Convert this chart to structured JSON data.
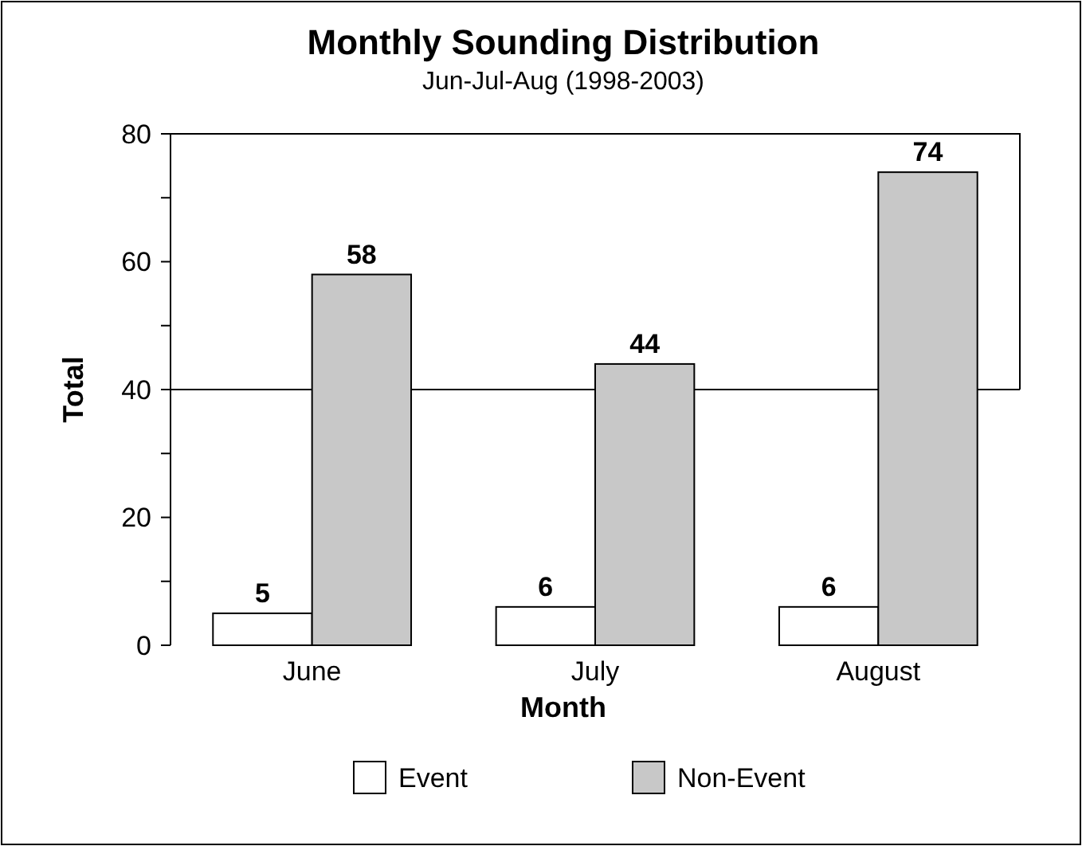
{
  "chart_data": {
    "type": "bar",
    "title": "Monthly Sounding Distribution",
    "subtitle": "Jun-Jul-Aug (1998-2003)",
    "xlabel": "Month",
    "ylabel": "Total",
    "categories": [
      "June",
      "July",
      "August"
    ],
    "series": [
      {
        "name": "Event",
        "color": "#ffffff",
        "values": [
          5,
          6,
          6
        ]
      },
      {
        "name": "Non-Event",
        "color": "#c8c8c8",
        "values": [
          58,
          44,
          74
        ]
      }
    ],
    "ylim": [
      0,
      80
    ],
    "yticks": [
      0,
      {
        "value": 10,
        "label": null
      },
      20,
      {
        "value": 30,
        "label": null
      },
      40,
      {
        "value": 50,
        "label": null
      },
      60,
      {
        "value": 70,
        "label": null
      },
      80
    ],
    "ref_lines": [
      {
        "axis": "y",
        "value": 40
      }
    ],
    "data_labels": true,
    "legend": "bottom",
    "grid": false
  }
}
